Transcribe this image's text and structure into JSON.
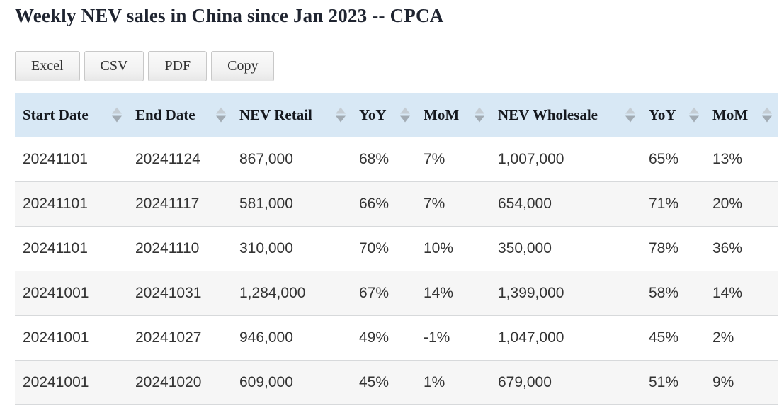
{
  "page": {
    "title": "Weekly NEV sales in China since Jan 2023 -- CPCA"
  },
  "toolbar": {
    "buttons": [
      {
        "label": "Excel"
      },
      {
        "label": "CSV"
      },
      {
        "label": "PDF"
      },
      {
        "label": "Copy"
      }
    ]
  },
  "table": {
    "columns": [
      "Start Date",
      "End Date",
      "NEV Retail",
      "YoY",
      "MoM",
      "NEV Wholesale",
      "YoY",
      "MoM"
    ],
    "rows": [
      [
        "20241101",
        "20241124",
        "867,000",
        "68%",
        "7%",
        "1,007,000",
        "65%",
        "13%"
      ],
      [
        "20241101",
        "20241117",
        "581,000",
        "66%",
        "7%",
        "654,000",
        "71%",
        "20%"
      ],
      [
        "20241101",
        "20241110",
        "310,000",
        "70%",
        "10%",
        "350,000",
        "78%",
        "36%"
      ],
      [
        "20241001",
        "20241031",
        "1,284,000",
        "67%",
        "14%",
        "1,399,000",
        "58%",
        "14%"
      ],
      [
        "20241001",
        "20241027",
        "946,000",
        "49%",
        "-1%",
        "1,047,000",
        "45%",
        "2%"
      ],
      [
        "20241001",
        "20241020",
        "609,000",
        "45%",
        "1%",
        "679,000",
        "51%",
        "9%"
      ]
    ]
  },
  "icons": {
    "sort_icon": "up-down-triangles"
  },
  "colors": {
    "title_text": "#1f2430",
    "header_bg": "#d8e8f5",
    "header_text": "#15181e",
    "stripe_bg": "#f6f6f6",
    "row_border": "#d7d9db",
    "cell_text": "#333333",
    "button_border": "#c8c8c8",
    "button_text": "#333333",
    "sort_arrow_up": "#c4ccd3",
    "sort_arrow_down": "#a2abb3"
  }
}
